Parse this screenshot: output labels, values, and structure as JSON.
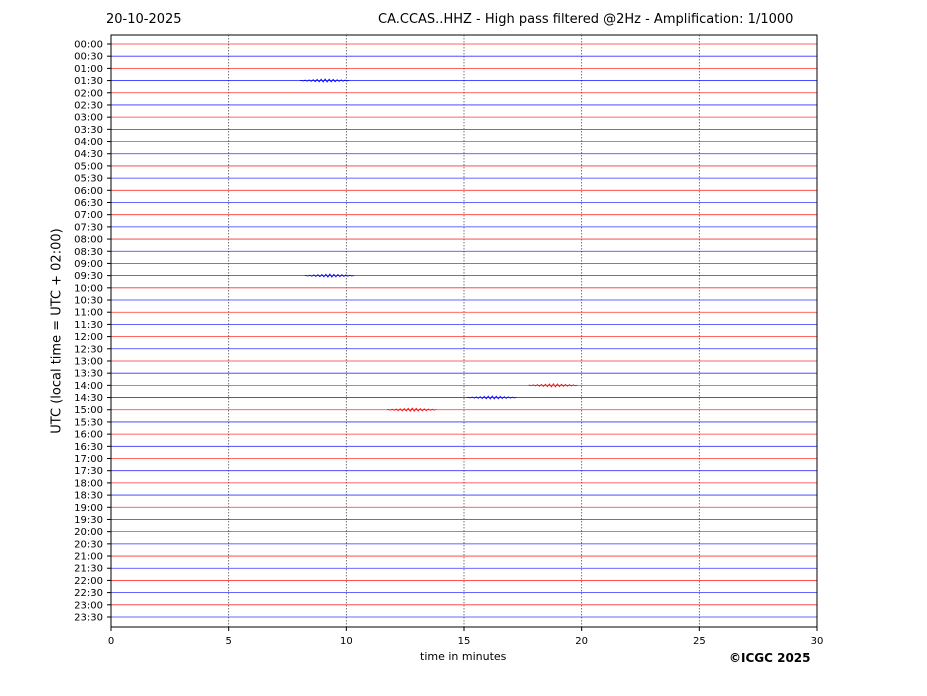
{
  "date": "20-10-2025",
  "title": "CA.CCAS..HHZ - High pass filtered @2Hz - Amplification: 1/1000",
  "copyright": "©ICGC 2025",
  "chart_data": {
    "type": "line",
    "title": "CA.CCAS..HHZ - High pass filtered @2Hz - Amplification: 1/1000",
    "xlabel": "time in minutes",
    "ylabel": "UTC (local time = UTC + 02:00)",
    "xlim": [
      0,
      30
    ],
    "xticks": [
      0,
      5,
      10,
      15,
      20,
      25,
      30
    ],
    "grid": "vertical dotted at x ticks",
    "trace_colors": [
      "#ff0000",
      "#0000ff"
    ],
    "rows": [
      "00:00",
      "00:30",
      "01:00",
      "01:30",
      "02:00",
      "02:30",
      "03:00",
      "03:30",
      "04:00",
      "04:30",
      "05:00",
      "05:30",
      "06:00",
      "06:30",
      "07:00",
      "07:30",
      "08:00",
      "08:30",
      "09:00",
      "09:30",
      "10:00",
      "10:30",
      "11:00",
      "11:30",
      "12:00",
      "12:30",
      "13:00",
      "13:30",
      "14:00",
      "14:30",
      "15:00",
      "15:30",
      "16:00",
      "16:30",
      "17:00",
      "17:30",
      "18:00",
      "18:30",
      "19:00",
      "19:30",
      "20:00",
      "20:30",
      "21:00",
      "21:30",
      "22:00",
      "22:30",
      "23:00",
      "23:30"
    ],
    "events": [
      {
        "row": "01:30",
        "minute": 9.1
      },
      {
        "row": "09:30",
        "minute": 9.3
      },
      {
        "row": "14:00",
        "minute": 18.8
      },
      {
        "row": "14:30",
        "minute": 16.2
      },
      {
        "row": "15:00",
        "minute": 12.8
      }
    ]
  }
}
